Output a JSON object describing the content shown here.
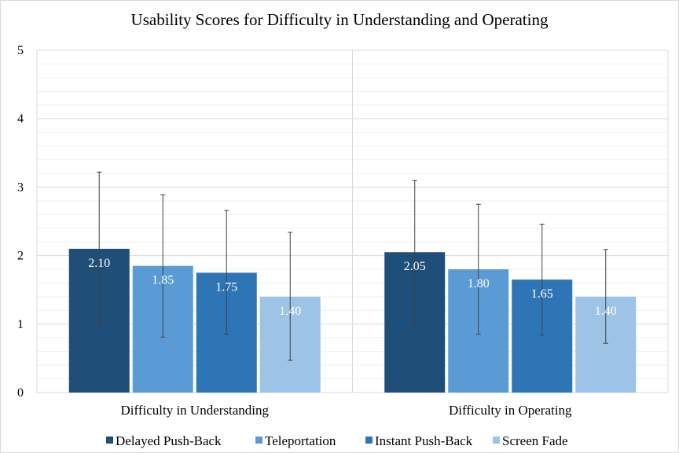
{
  "chart_data": {
    "type": "bar",
    "title": "Usability Scores for Difficulty in Understanding  and Operating",
    "categories": [
      "Difficulty in Understanding",
      "Difficulty in Operating"
    ],
    "ylim": [
      0,
      5
    ],
    "yticks": [
      "0",
      "1",
      "2",
      "3",
      "4",
      "5"
    ],
    "grid": true,
    "legend_position": "bottom",
    "series": [
      {
        "name": "Delayed Push-Back",
        "color": "#1f4e79",
        "values": [
          2.1,
          2.05
        ],
        "labels": [
          "2.10",
          "2.05"
        ],
        "err_low": [
          0.98,
          1.0
        ],
        "err_high": [
          3.22,
          3.1
        ]
      },
      {
        "name": "Teleportation",
        "color": "#5b9bd5",
        "values": [
          1.85,
          1.8
        ],
        "labels": [
          "1.85",
          "1.80"
        ],
        "err_low": [
          0.81,
          0.85
        ],
        "err_high": [
          2.89,
          2.75
        ]
      },
      {
        "name": "Instant Push-Back",
        "color": "#2e75b6",
        "values": [
          1.75,
          1.65
        ],
        "labels": [
          "1.75",
          "1.65"
        ],
        "err_low": [
          0.85,
          0.84
        ],
        "err_high": [
          2.66,
          2.46
        ]
      },
      {
        "name": "Screen Fade",
        "color": "#9dc3e6",
        "values": [
          1.4,
          1.4
        ],
        "labels": [
          "1.40",
          "1.40"
        ],
        "err_low": [
          0.47,
          0.72
        ],
        "err_high": [
          2.34,
          2.09
        ]
      }
    ]
  }
}
